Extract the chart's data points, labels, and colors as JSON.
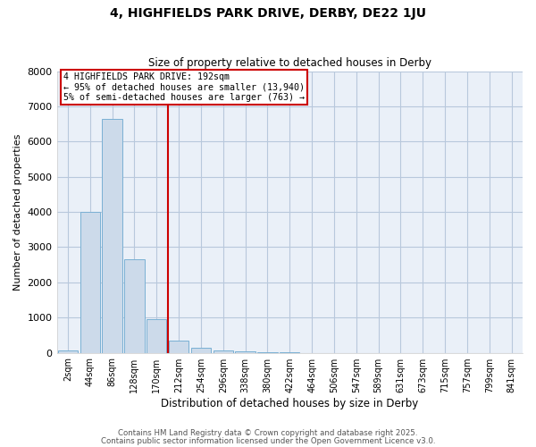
{
  "title1": "4, HIGHFIELDS PARK DRIVE, DERBY, DE22 1JU",
  "title2": "Size of property relative to detached houses in Derby",
  "xlabel": "Distribution of detached houses by size in Derby",
  "ylabel": "Number of detached properties",
  "bar_labels": [
    "2sqm",
    "44sqm",
    "86sqm",
    "128sqm",
    "170sqm",
    "212sqm",
    "254sqm",
    "296sqm",
    "338sqm",
    "380sqm",
    "422sqm",
    "464sqm",
    "506sqm",
    "547sqm",
    "589sqm",
    "631sqm",
    "673sqm",
    "715sqm",
    "757sqm",
    "799sqm",
    "841sqm"
  ],
  "bar_values": [
    75,
    4000,
    6650,
    2650,
    950,
    350,
    130,
    75,
    40,
    10,
    5,
    2,
    0,
    0,
    0,
    0,
    0,
    0,
    0,
    0,
    0
  ],
  "bar_color": "#ccdaea",
  "bar_edgecolor": "#7ab0d4",
  "vline_x": 4.5,
  "vline_color": "#cc0000",
  "ylim": [
    0,
    8000
  ],
  "yticks": [
    0,
    1000,
    2000,
    3000,
    4000,
    5000,
    6000,
    7000,
    8000
  ],
  "annotation_title": "4 HIGHFIELDS PARK DRIVE: 192sqm",
  "annotation_line1": "← 95% of detached houses are smaller (13,940)",
  "annotation_line2": "5% of semi-detached houses are larger (763) →",
  "annotation_box_edgecolor": "#cc0000",
  "annotation_box_facecolor": "#ffffff",
  "footer1": "Contains HM Land Registry data © Crown copyright and database right 2025.",
  "footer2": "Contains public sector information licensed under the Open Government Licence v3.0.",
  "plot_bg_color": "#eaf0f8",
  "grid_color": "#b8c8dc"
}
